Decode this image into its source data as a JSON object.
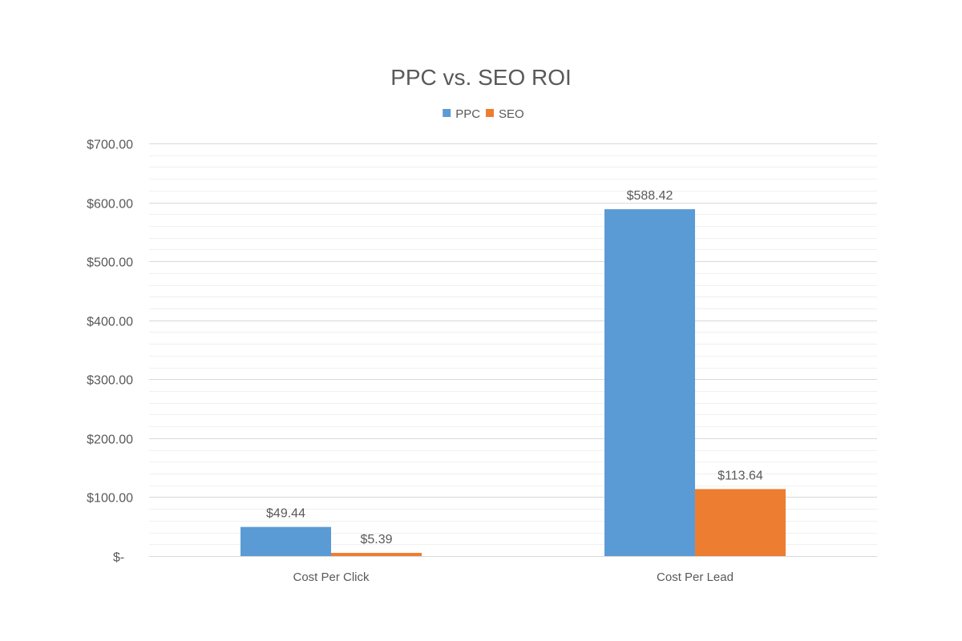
{
  "chart_data": {
    "type": "bar",
    "title": "PPC vs. SEO ROI",
    "categories": [
      "Cost Per Click",
      "Cost Per Lead"
    ],
    "series": [
      {
        "name": "PPC",
        "color": "#5B9BD5",
        "values": [
          49.44,
          588.42
        ],
        "labels": [
          "$49.44",
          "$588.42"
        ]
      },
      {
        "name": "SEO",
        "color": "#ED7D31",
        "values": [
          5.39,
          113.64
        ],
        "labels": [
          "$5.39",
          "$113.64"
        ]
      }
    ],
    "ylim": [
      0,
      700
    ],
    "yticks": [
      0,
      100,
      200,
      300,
      400,
      500,
      600,
      700
    ],
    "ytick_labels": [
      "$-",
      "$100.00",
      "$200.00",
      "$300.00",
      "$400.00",
      "$500.00",
      "$600.00",
      "$700.00"
    ],
    "minor_gridlines": true,
    "grid": true,
    "legend_position": "top",
    "xlabel": "",
    "ylabel": ""
  }
}
